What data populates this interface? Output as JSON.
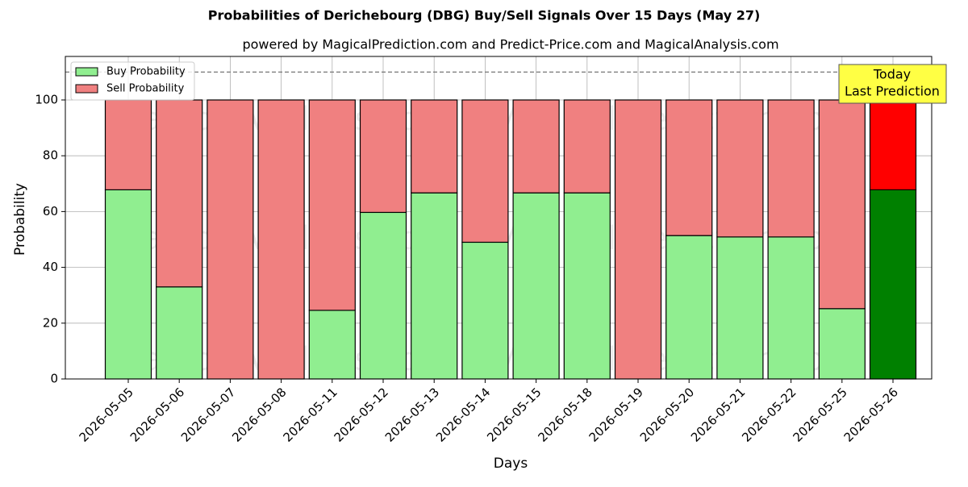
{
  "chart_data": {
    "type": "stacked_bar",
    "title": "Probabilities of Derichebourg (DBG) Buy/Sell Signals Over 15 Days (May 27)",
    "subtitle": "powered by MagicalPrediction.com and Predict-Price.com and MagicalAnalysis.com",
    "x_label": "Days",
    "y_label": "Probability",
    "categories": [
      "2026-05-05",
      "2026-05-06",
      "2026-05-07",
      "2026-05-08",
      "2026-05-11",
      "2026-05-12",
      "2026-05-13",
      "2026-05-14",
      "2026-05-15",
      "2026-05-18",
      "2026-05-19",
      "2026-05-20",
      "2026-05-21",
      "2026-05-22",
      "2026-05-25",
      "2026-05-26"
    ],
    "series": [
      {
        "name": "Buy Probability",
        "color": "#90ee90",
        "bar_colors": [
          "#90ee90",
          "#90ee90",
          "#90ee90",
          "#90ee90",
          "#90ee90",
          "#90ee90",
          "#90ee90",
          "#90ee90",
          "#90ee90",
          "#90ee90",
          "#90ee90",
          "#90ee90",
          "#90ee90",
          "#90ee90",
          "#90ee90",
          "#008000"
        ],
        "values": [
          67.8,
          33,
          0,
          0,
          24.6,
          59.7,
          66.7,
          49,
          66.7,
          66.7,
          0,
          51.4,
          50.9,
          50.9,
          25.2,
          67.8
        ]
      },
      {
        "name": "Sell Probability",
        "color": "#f08080",
        "bar_colors": [
          "#f08080",
          "#f08080",
          "#f08080",
          "#f08080",
          "#f08080",
          "#f08080",
          "#f08080",
          "#f08080",
          "#f08080",
          "#f08080",
          "#f08080",
          "#f08080",
          "#f08080",
          "#f08080",
          "#f08080",
          "#ff0000"
        ],
        "values": [
          32.2,
          67,
          100,
          100,
          75.4,
          40.3,
          33.3,
          51,
          33.3,
          33.3,
          100,
          48.6,
          49.1,
          49.1,
          74.8,
          32.2
        ]
      }
    ],
    "ylim": [
      0,
      115.6
    ],
    "yticks": [
      0,
      20,
      40,
      60,
      80,
      100
    ],
    "grid": true,
    "hline": 110,
    "legend": "upper-left",
    "annotation": [
      "Today",
      "Last Prediction"
    ],
    "watermarks": [
      "MagicalAnalysis.com",
      "MagicalPrediction.com"
    ]
  }
}
